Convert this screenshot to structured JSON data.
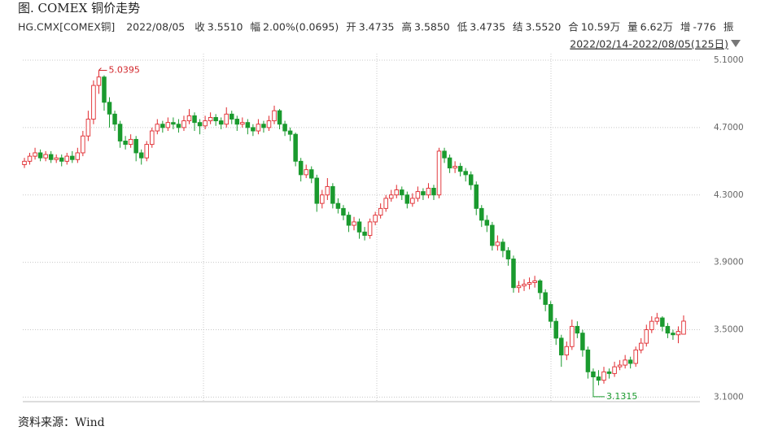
{
  "header": {
    "title": "图. COMEX 铜价走势",
    "symbol": "HG.CMX[COMEX铜]",
    "date": "2022/08/05",
    "fields": [
      {
        "label": "收",
        "value": "3.5510"
      },
      {
        "label": "幅",
        "value": "2.00%(0.0695)"
      },
      {
        "label": "开",
        "value": "3.4735"
      },
      {
        "label": "高",
        "value": "3.5850"
      },
      {
        "label": "低",
        "value": "3.4735"
      },
      {
        "label": "结",
        "value": "3.5520"
      },
      {
        "label": "合",
        "value": "10.59万"
      },
      {
        "label": "量",
        "value": "6.62万"
      },
      {
        "label": "增",
        "value": "-776"
      },
      {
        "label": "振"
      }
    ],
    "range": "2022/02/14-2022/08/05(125日)"
  },
  "chart_data": {
    "type": "candlestick",
    "up_color": "#e0282d",
    "down_color": "#1a9a2e",
    "grid": true,
    "ylim": [
      3.0875,
      5.1
    ],
    "yticks": [
      {
        "value": 3.1,
        "label": "3.1000"
      },
      {
        "value": 3.5,
        "label": "3.5000"
      },
      {
        "value": 3.9,
        "label": "3.9000"
      },
      {
        "value": 4.3,
        "label": "4.3000"
      },
      {
        "value": 4.7,
        "label": "4.7000"
      },
      {
        "value": 5.1,
        "label": "5.1000"
      }
    ],
    "open": [
      4.48,
      4.5,
      4.53,
      4.55,
      4.52,
      4.54,
      4.51,
      4.52,
      4.5,
      4.53,
      4.51,
      4.55,
      4.65,
      4.75,
      4.95,
      5.0,
      4.85,
      4.78,
      4.72,
      4.62,
      4.6,
      4.63,
      4.55,
      4.52,
      4.6,
      4.68,
      4.72,
      4.7,
      4.73,
      4.72,
      4.7,
      4.74,
      4.77,
      4.73,
      4.71,
      4.74,
      4.76,
      4.74,
      4.72,
      4.78,
      4.75,
      4.72,
      4.73,
      4.7,
      4.68,
      4.72,
      4.7,
      4.74,
      4.8,
      4.72,
      4.68,
      4.66,
      4.5,
      4.42,
      4.45,
      4.4,
      4.25,
      4.3,
      4.35,
      4.25,
      4.22,
      4.18,
      4.12,
      4.14,
      4.08,
      4.06,
      4.14,
      4.18,
      4.22,
      4.28,
      4.3,
      4.33,
      4.3,
      4.25,
      4.28,
      4.32,
      4.3,
      4.34,
      4.3,
      4.56,
      4.52,
      4.46,
      4.47,
      4.44,
      4.42,
      4.36,
      4.22,
      4.15,
      4.12,
      4.0,
      4.02,
      3.97,
      3.92,
      3.75,
      3.76,
      3.77,
      3.78,
      3.79,
      3.72,
      3.65,
      3.55,
      3.45,
      3.35,
      3.4,
      3.52,
      3.48,
      3.38,
      3.25,
      3.22,
      3.2,
      3.25,
      3.24,
      3.28,
      3.29,
      3.32,
      3.3,
      3.38,
      3.42,
      3.5,
      3.55,
      3.57,
      3.52,
      3.48,
      3.47,
      3.4735
    ],
    "high": [
      4.52,
      4.55,
      4.58,
      4.57,
      4.56,
      4.56,
      4.54,
      4.54,
      4.55,
      4.56,
      4.58,
      4.68,
      4.8,
      4.98,
      5.0395,
      5.01,
      4.88,
      4.8,
      4.74,
      4.65,
      4.66,
      4.65,
      4.57,
      4.62,
      4.7,
      4.75,
      4.74,
      4.76,
      4.76,
      4.75,
      4.77,
      4.81,
      4.79,
      4.75,
      4.77,
      4.79,
      4.78,
      4.76,
      4.82,
      4.8,
      4.77,
      4.76,
      4.75,
      4.72,
      4.75,
      4.74,
      4.77,
      4.83,
      4.81,
      4.74,
      4.7,
      4.67,
      4.52,
      4.48,
      4.47,
      4.42,
      4.33,
      4.4,
      4.37,
      4.28,
      4.24,
      4.2,
      4.17,
      4.16,
      4.11,
      4.16,
      4.2,
      4.25,
      4.3,
      4.33,
      4.36,
      4.35,
      4.32,
      4.31,
      4.35,
      4.34,
      4.37,
      4.36,
      4.58,
      4.58,
      4.54,
      4.5,
      4.49,
      4.46,
      4.44,
      4.38,
      4.24,
      4.18,
      4.14,
      4.06,
      4.04,
      3.99,
      3.94,
      3.79,
      3.8,
      3.81,
      3.82,
      3.8,
      3.74,
      3.67,
      3.57,
      3.47,
      3.43,
      3.56,
      3.55,
      3.5,
      3.4,
      3.27,
      3.26,
      3.28,
      3.27,
      3.31,
      3.32,
      3.35,
      3.34,
      3.4,
      3.45,
      3.53,
      3.58,
      3.6,
      3.58,
      3.54,
      3.5,
      3.52,
      3.585
    ],
    "low": [
      4.46,
      4.48,
      4.51,
      4.5,
      4.5,
      4.49,
      4.49,
      4.47,
      4.48,
      4.49,
      4.49,
      4.53,
      4.62,
      4.72,
      4.9,
      4.8,
      4.7,
      4.68,
      4.58,
      4.57,
      4.58,
      4.5,
      4.48,
      4.5,
      4.58,
      4.66,
      4.67,
      4.68,
      4.69,
      4.67,
      4.68,
      4.72,
      4.68,
      4.66,
      4.69,
      4.72,
      4.71,
      4.69,
      4.7,
      4.72,
      4.68,
      4.7,
      4.66,
      4.65,
      4.66,
      4.67,
      4.68,
      4.72,
      4.69,
      4.65,
      4.62,
      4.47,
      4.38,
      4.4,
      4.37,
      4.2,
      4.22,
      4.27,
      4.22,
      4.19,
      4.15,
      4.08,
      4.09,
      4.04,
      4.03,
      4.04,
      4.12,
      4.16,
      4.2,
      4.26,
      4.28,
      4.27,
      4.22,
      4.23,
      4.26,
      4.27,
      4.28,
      4.27,
      4.28,
      4.49,
      4.43,
      4.43,
      4.41,
      4.38,
      4.33,
      4.18,
      4.11,
      4.08,
      3.97,
      3.97,
      3.93,
      3.88,
      3.72,
      3.72,
      3.73,
      3.74,
      3.75,
      3.68,
      3.61,
      3.51,
      3.41,
      3.28,
      3.32,
      3.38,
      3.45,
      3.34,
      3.21,
      3.1315,
      3.17,
      3.18,
      3.21,
      3.22,
      3.26,
      3.27,
      3.27,
      3.28,
      3.36,
      3.4,
      3.48,
      3.53,
      3.49,
      3.45,
      3.44,
      3.42,
      3.4735
    ],
    "close": [
      4.5,
      4.53,
      4.55,
      4.52,
      4.54,
      4.51,
      4.52,
      4.5,
      4.53,
      4.51,
      4.55,
      4.65,
      4.75,
      4.95,
      5.0,
      4.85,
      4.78,
      4.72,
      4.62,
      4.6,
      4.63,
      4.55,
      4.52,
      4.6,
      4.68,
      4.72,
      4.7,
      4.73,
      4.72,
      4.7,
      4.74,
      4.77,
      4.73,
      4.71,
      4.74,
      4.76,
      4.74,
      4.72,
      4.78,
      4.75,
      4.72,
      4.73,
      4.7,
      4.68,
      4.72,
      4.7,
      4.74,
      4.8,
      4.72,
      4.68,
      4.66,
      4.5,
      4.42,
      4.45,
      4.4,
      4.25,
      4.3,
      4.35,
      4.25,
      4.22,
      4.18,
      4.12,
      4.14,
      4.08,
      4.06,
      4.14,
      4.18,
      4.22,
      4.28,
      4.3,
      4.33,
      4.3,
      4.25,
      4.28,
      4.32,
      4.3,
      4.34,
      4.3,
      4.56,
      4.52,
      4.46,
      4.47,
      4.44,
      4.42,
      4.36,
      4.22,
      4.15,
      4.12,
      4.0,
      4.02,
      3.97,
      3.92,
      3.75,
      3.76,
      3.77,
      3.78,
      3.79,
      3.72,
      3.65,
      3.55,
      3.45,
      3.35,
      3.4,
      3.52,
      3.48,
      3.38,
      3.25,
      3.22,
      3.2,
      3.25,
      3.24,
      3.28,
      3.29,
      3.32,
      3.3,
      3.38,
      3.42,
      3.5,
      3.55,
      3.57,
      3.52,
      3.48,
      3.47,
      3.49,
      3.551
    ]
  },
  "footer": "资料来源：Wind"
}
